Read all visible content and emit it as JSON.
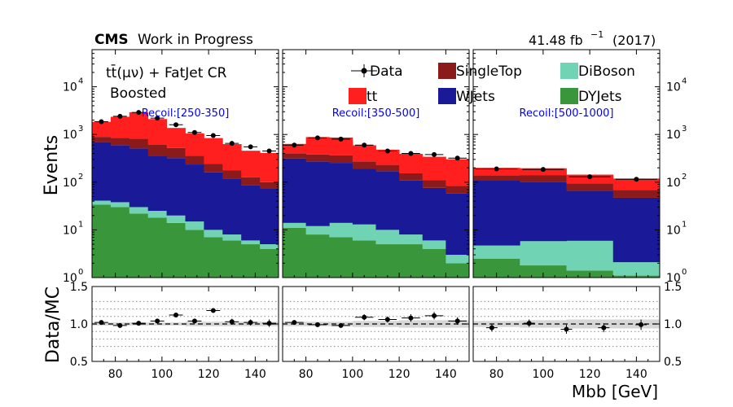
{
  "header": {
    "cms": "CMS",
    "wip": "Work in Progress",
    "lumi": "41.48 fb",
    "lumi_exp": "−1",
    "year": "(2017)"
  },
  "region": {
    "line1_main": "tt̄(μν) + FatJet CR",
    "line2": "Boosted"
  },
  "axes": {
    "ylabel_top": "Events",
    "ylabel_bottom": "Data/MC",
    "xlabel": "Mbb [GeV]"
  },
  "colors": {
    "tt": "#ff1f1f",
    "singletop": "#8b1a1a",
    "wjets": "#1a1a99",
    "diboson": "#70d4b4",
    "dyjets": "#3a963a",
    "data": "#000000",
    "recoil_text": "#0000ff",
    "band": "#d6d6d6"
  },
  "chart_data": {
    "type": "bar",
    "stacked": true,
    "ylog": true,
    "ylim": [
      1,
      60000
    ],
    "ratio_ylim": [
      0.5,
      1.5
    ],
    "xlim": [
      70,
      150
    ],
    "legend": [
      {
        "key": "data",
        "label": "Data"
      },
      {
        "key": "singletop",
        "label": "SingleTop"
      },
      {
        "key": "diboson",
        "label": "DiBoson"
      },
      {
        "key": "tt",
        "label": "tt"
      },
      {
        "key": "wjets",
        "label": "WJets"
      },
      {
        "key": "dyjets",
        "label": "DYJets"
      }
    ],
    "panels": [
      {
        "recoil": "Recoil:[250-350]",
        "bins": [
          70,
          78,
          86,
          94,
          102,
          110,
          118,
          126,
          134,
          142,
          150
        ],
        "dyjets": [
          34,
          30,
          22,
          18,
          14,
          10,
          7,
          6,
          5,
          4
        ],
        "diboson": [
          7,
          8,
          8,
          7,
          6,
          5,
          3,
          2,
          1,
          1
        ],
        "wjets": [
          650,
          560,
          480,
          330,
          300,
          220,
          150,
          110,
          80,
          70
        ],
        "singletop": [
          200,
          250,
          300,
          250,
          200,
          120,
          80,
          60,
          40,
          25
        ],
        "tt": [
          950,
          1500,
          2100,
          1500,
          850,
          700,
          600,
          450,
          330,
          310
        ],
        "data": [
          1850,
          2400,
          2900,
          2200,
          1600,
          1100,
          950,
          650,
          550,
          450
        ],
        "ratio": [
          1.02,
          0.98,
          1.01,
          1.04,
          1.12,
          1.04,
          1.18,
          1.03,
          1.02,
          1.01
        ],
        "ratio_err": [
          0.02,
          0.02,
          0.02,
          0.03,
          0.03,
          0.03,
          0.03,
          0.04,
          0.04,
          0.05
        ],
        "band": [
          0.02,
          0.02,
          0.02,
          0.02,
          0.02,
          0.03,
          0.03,
          0.03,
          0.03,
          0.03
        ]
      },
      {
        "recoil": "Recoil:[350-500]",
        "bins": [
          70,
          80,
          90,
          100,
          110,
          120,
          130,
          140,
          150
        ],
        "dyjets": [
          11,
          8,
          7,
          6,
          5,
          5,
          4,
          2
        ],
        "diboson": [
          3,
          4,
          7,
          7,
          5,
          3,
          2,
          1
        ],
        "wjets": [
          300,
          260,
          240,
          180,
          160,
          100,
          70,
          55
        ],
        "singletop": [
          90,
          110,
          110,
          80,
          60,
          45,
          35,
          25
        ],
        "tt": [
          230,
          500,
          500,
          320,
          250,
          240,
          230,
          220
        ],
        "data": [
          600,
          850,
          800,
          600,
          450,
          400,
          380,
          320
        ],
        "ratio": [
          1.02,
          0.99,
          0.98,
          1.09,
          1.06,
          1.08,
          1.11,
          1.04
        ],
        "ratio_err": [
          0.03,
          0.03,
          0.03,
          0.04,
          0.04,
          0.05,
          0.05,
          0.05
        ],
        "band": [
          0.03,
          0.03,
          0.03,
          0.04,
          0.04,
          0.05,
          0.05,
          0.05
        ]
      },
      {
        "recoil": "Recoil:[500-1000]",
        "bins": [
          70,
          90,
          110,
          130,
          150
        ],
        "dyjets": [
          2.5,
          1.8,
          1.4,
          1.1
        ],
        "diboson": [
          2.2,
          4,
          4.5,
          1
        ],
        "wjets": [
          105,
          95,
          60,
          45
        ],
        "singletop": [
          30,
          40,
          28,
          22
        ],
        "tt": [
          60,
          55,
          50,
          50
        ],
        "data": [
          190,
          185,
          130,
          115
        ],
        "ratio": [
          0.95,
          1.01,
          0.93,
          0.95,
          0.99
        ],
        "ratio_x": [
          78,
          94,
          110,
          126,
          142
        ],
        "ratio_err": [
          0.05,
          0.05,
          0.06,
          0.06,
          0.07
        ],
        "band": [
          0.04,
          0.05,
          0.06,
          0.06
        ]
      }
    ],
    "xticks": [
      80,
      100,
      120,
      140
    ],
    "yticks_exp": [
      "10",
      "10",
      "10",
      "10",
      "10"
    ],
    "yticks_pow": [
      "0",
      "1",
      "2",
      "3",
      "4"
    ],
    "ratio_ticks": [
      "0.5",
      "1.0",
      "1.5"
    ]
  }
}
